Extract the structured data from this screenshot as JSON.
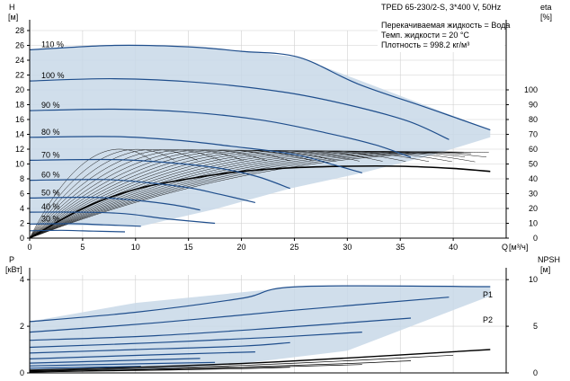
{
  "chart_data": [
    {
      "type": "line",
      "title": "TPED 65-230/2-S, 3*400 V, 50Hz",
      "info_lines": [
        "Перекачиваемая жидкость = Вода",
        "Темп. жидкости = 20 °C",
        "Плотность = 998.2 кг/м³"
      ],
      "xlabel": "Q [м³/ч]",
      "x_unit": "[м³/ч]",
      "x_axis_label": "Q",
      "ylabel": "H",
      "y_unit": "[м]",
      "y2label": "eta",
      "y2_unit": "[%]",
      "xlim": [
        0,
        45
      ],
      "ylim": [
        0,
        28
      ],
      "y2lim": [
        0,
        140
      ],
      "x_ticks": [
        0,
        5,
        10,
        15,
        20,
        25,
        30,
        35,
        40
      ],
      "y_ticks": [
        0,
        2,
        4,
        6,
        8,
        10,
        12,
        14,
        16,
        18,
        20,
        22,
        24,
        26,
        28
      ],
      "y2_ticks": [
        0,
        10,
        20,
        30,
        40,
        50,
        60,
        70,
        80,
        90,
        100
      ],
      "grid": true,
      "operating_region": {
        "x": [
          0,
          10.5,
          17.5,
          24.6,
          31.4,
          38,
          43.5,
          43.5,
          42,
          25.4,
          17,
          8.8,
          0
        ],
        "y": [
          1.8,
          1.6,
          3.9,
          6.7,
          8.8,
          11.2,
          13.6,
          14.6,
          15.4,
          24.4,
          25.7,
          26,
          25.4
        ]
      },
      "speed_curves": [
        {
          "label": "110 %",
          "x": [
            0,
            8,
            15,
            20,
            25.4,
            31,
            37.5,
            43.5
          ],
          "y": [
            25.4,
            26,
            25.8,
            25.2,
            24.4,
            20.8,
            17.6,
            14.6
          ]
        },
        {
          "label": "100 %",
          "x": [
            0,
            8,
            16,
            24,
            30,
            35.7,
            39.6
          ],
          "y": [
            21.2,
            21.5,
            21,
            19.7,
            18,
            15.8,
            13.3
          ]
        },
        {
          "label": "90 %",
          "x": [
            0,
            8,
            15,
            22,
            28,
            32.6,
            36
          ],
          "y": [
            17.2,
            17.4,
            17,
            15.9,
            14.2,
            12.6,
            10.9
          ]
        },
        {
          "label": "80 %",
          "x": [
            0,
            8,
            14,
            19,
            25,
            28.7,
            31.4
          ],
          "y": [
            13.6,
            13.7,
            13.2,
            12.4,
            11.3,
            9.9,
            8.8
          ]
        },
        {
          "label": "70 %",
          "x": [
            0,
            8,
            13,
            18,
            21.5,
            24.6
          ],
          "y": [
            10.5,
            10.6,
            10.2,
            9.4,
            8.3,
            6.7
          ]
        },
        {
          "label": "60 %",
          "x": [
            0,
            7,
            11,
            15,
            18,
            21.3
          ],
          "y": [
            7.8,
            7.9,
            7.5,
            6.8,
            5.9,
            4.8
          ]
        },
        {
          "label": "50 %",
          "x": [
            0,
            6,
            10,
            13.5,
            16.1
          ],
          "y": [
            5.4,
            5.5,
            5.1,
            4.5,
            3.8
          ]
        },
        {
          "label": "40 %",
          "x": [
            0,
            5,
            9,
            13,
            17.5
          ],
          "y": [
            3.5,
            3.5,
            3.3,
            2.6,
            2.0
          ]
        },
        {
          "label": "30 %",
          "x": [
            0,
            4,
            7,
            10.5
          ],
          "y": [
            1.9,
            1.95,
            1.8,
            1.6
          ]
        },
        {
          "label": "",
          "x": [
            0,
            3,
            6,
            9
          ],
          "y": [
            1.0,
            1.05,
            0.95,
            0.85
          ]
        }
      ],
      "efficiency_curves": {
        "count": 22,
        "peak_eta": 60,
        "peak_x_first": 8.5,
        "peak_x_last": 42.5,
        "end_x": 43.5,
        "main_curve": {
          "x": [
            0,
            5,
            10,
            15,
            20,
            25,
            30,
            35,
            40,
            43.5
          ],
          "y2": [
            0,
            20,
            33,
            40,
            45,
            47.5,
            48.5,
            48.5,
            47,
            45
          ]
        }
      },
      "series_labels": []
    },
    {
      "type": "line",
      "ylabel": "P",
      "y_unit": "[кВт]",
      "y2label": "NPSH",
      "y2_unit": "[м]",
      "xlim": [
        0,
        45
      ],
      "ylim": [
        0,
        4.2
      ],
      "y2lim": [
        0,
        10.5
      ],
      "y_ticks": [
        0,
        2,
        4
      ],
      "y2_ticks": [
        0,
        5,
        10
      ],
      "grid": true,
      "operating_region": {
        "x": [
          0,
          10.5,
          20,
          30,
          43.5,
          43.5,
          25.4,
          10,
          0
        ],
        "y": [
          0.1,
          0.1,
          0.4,
          0.95,
          3.3,
          3.7,
          3.7,
          3.0,
          2.2
        ]
      },
      "power_curves": [
        {
          "x": [
            0,
            10,
            20,
            25.4,
            43.5
          ],
          "y": [
            2.2,
            2.6,
            3.2,
            3.7,
            3.7
          ]
        },
        {
          "x": [
            0,
            12,
            24,
            39.6
          ],
          "y": [
            1.75,
            2.15,
            2.65,
            3.25
          ]
        },
        {
          "x": [
            0,
            12,
            24,
            36
          ],
          "y": [
            1.4,
            1.6,
            1.95,
            2.35
          ]
        },
        {
          "x": [
            0,
            12,
            24,
            31.4
          ],
          "y": [
            1.1,
            1.3,
            1.55,
            1.75
          ]
        },
        {
          "x": [
            0,
            10,
            20,
            24.6
          ],
          "y": [
            0.85,
            1.0,
            1.15,
            1.3
          ]
        },
        {
          "x": [
            0,
            10,
            21.3
          ],
          "y": [
            0.6,
            0.75,
            0.9
          ]
        },
        {
          "x": [
            0,
            8,
            16.1
          ],
          "y": [
            0.42,
            0.52,
            0.62
          ]
        },
        {
          "x": [
            0,
            8,
            17.5
          ],
          "y": [
            0.3,
            0.37,
            0.45
          ]
        },
        {
          "x": [
            0,
            5,
            10.5
          ],
          "y": [
            0.2,
            0.24,
            0.28
          ]
        }
      ],
      "npsh_curves": [
        {
          "x": [
            0,
            10,
            20,
            30,
            43.5
          ],
          "y2": [
            0.3,
            0.6,
            1.0,
            1.6,
            2.5
          ]
        },
        {
          "x": [
            0,
            10,
            20,
            30,
            40
          ],
          "y2": [
            0.2,
            0.45,
            0.8,
            1.3,
            1.9
          ]
        },
        {
          "x": [
            0,
            10,
            20,
            30,
            36
          ],
          "y2": [
            0.15,
            0.35,
            0.65,
            1.0,
            1.3
          ]
        },
        {
          "x": [
            0,
            10,
            20,
            31.4
          ],
          "y2": [
            0.1,
            0.3,
            0.55,
            0.9
          ]
        },
        {
          "x": [
            0,
            10,
            20,
            24.6
          ],
          "y2": [
            0.08,
            0.25,
            0.45,
            0.6
          ]
        }
      ],
      "series_labels": [
        "P1",
        "P2"
      ]
    }
  ]
}
